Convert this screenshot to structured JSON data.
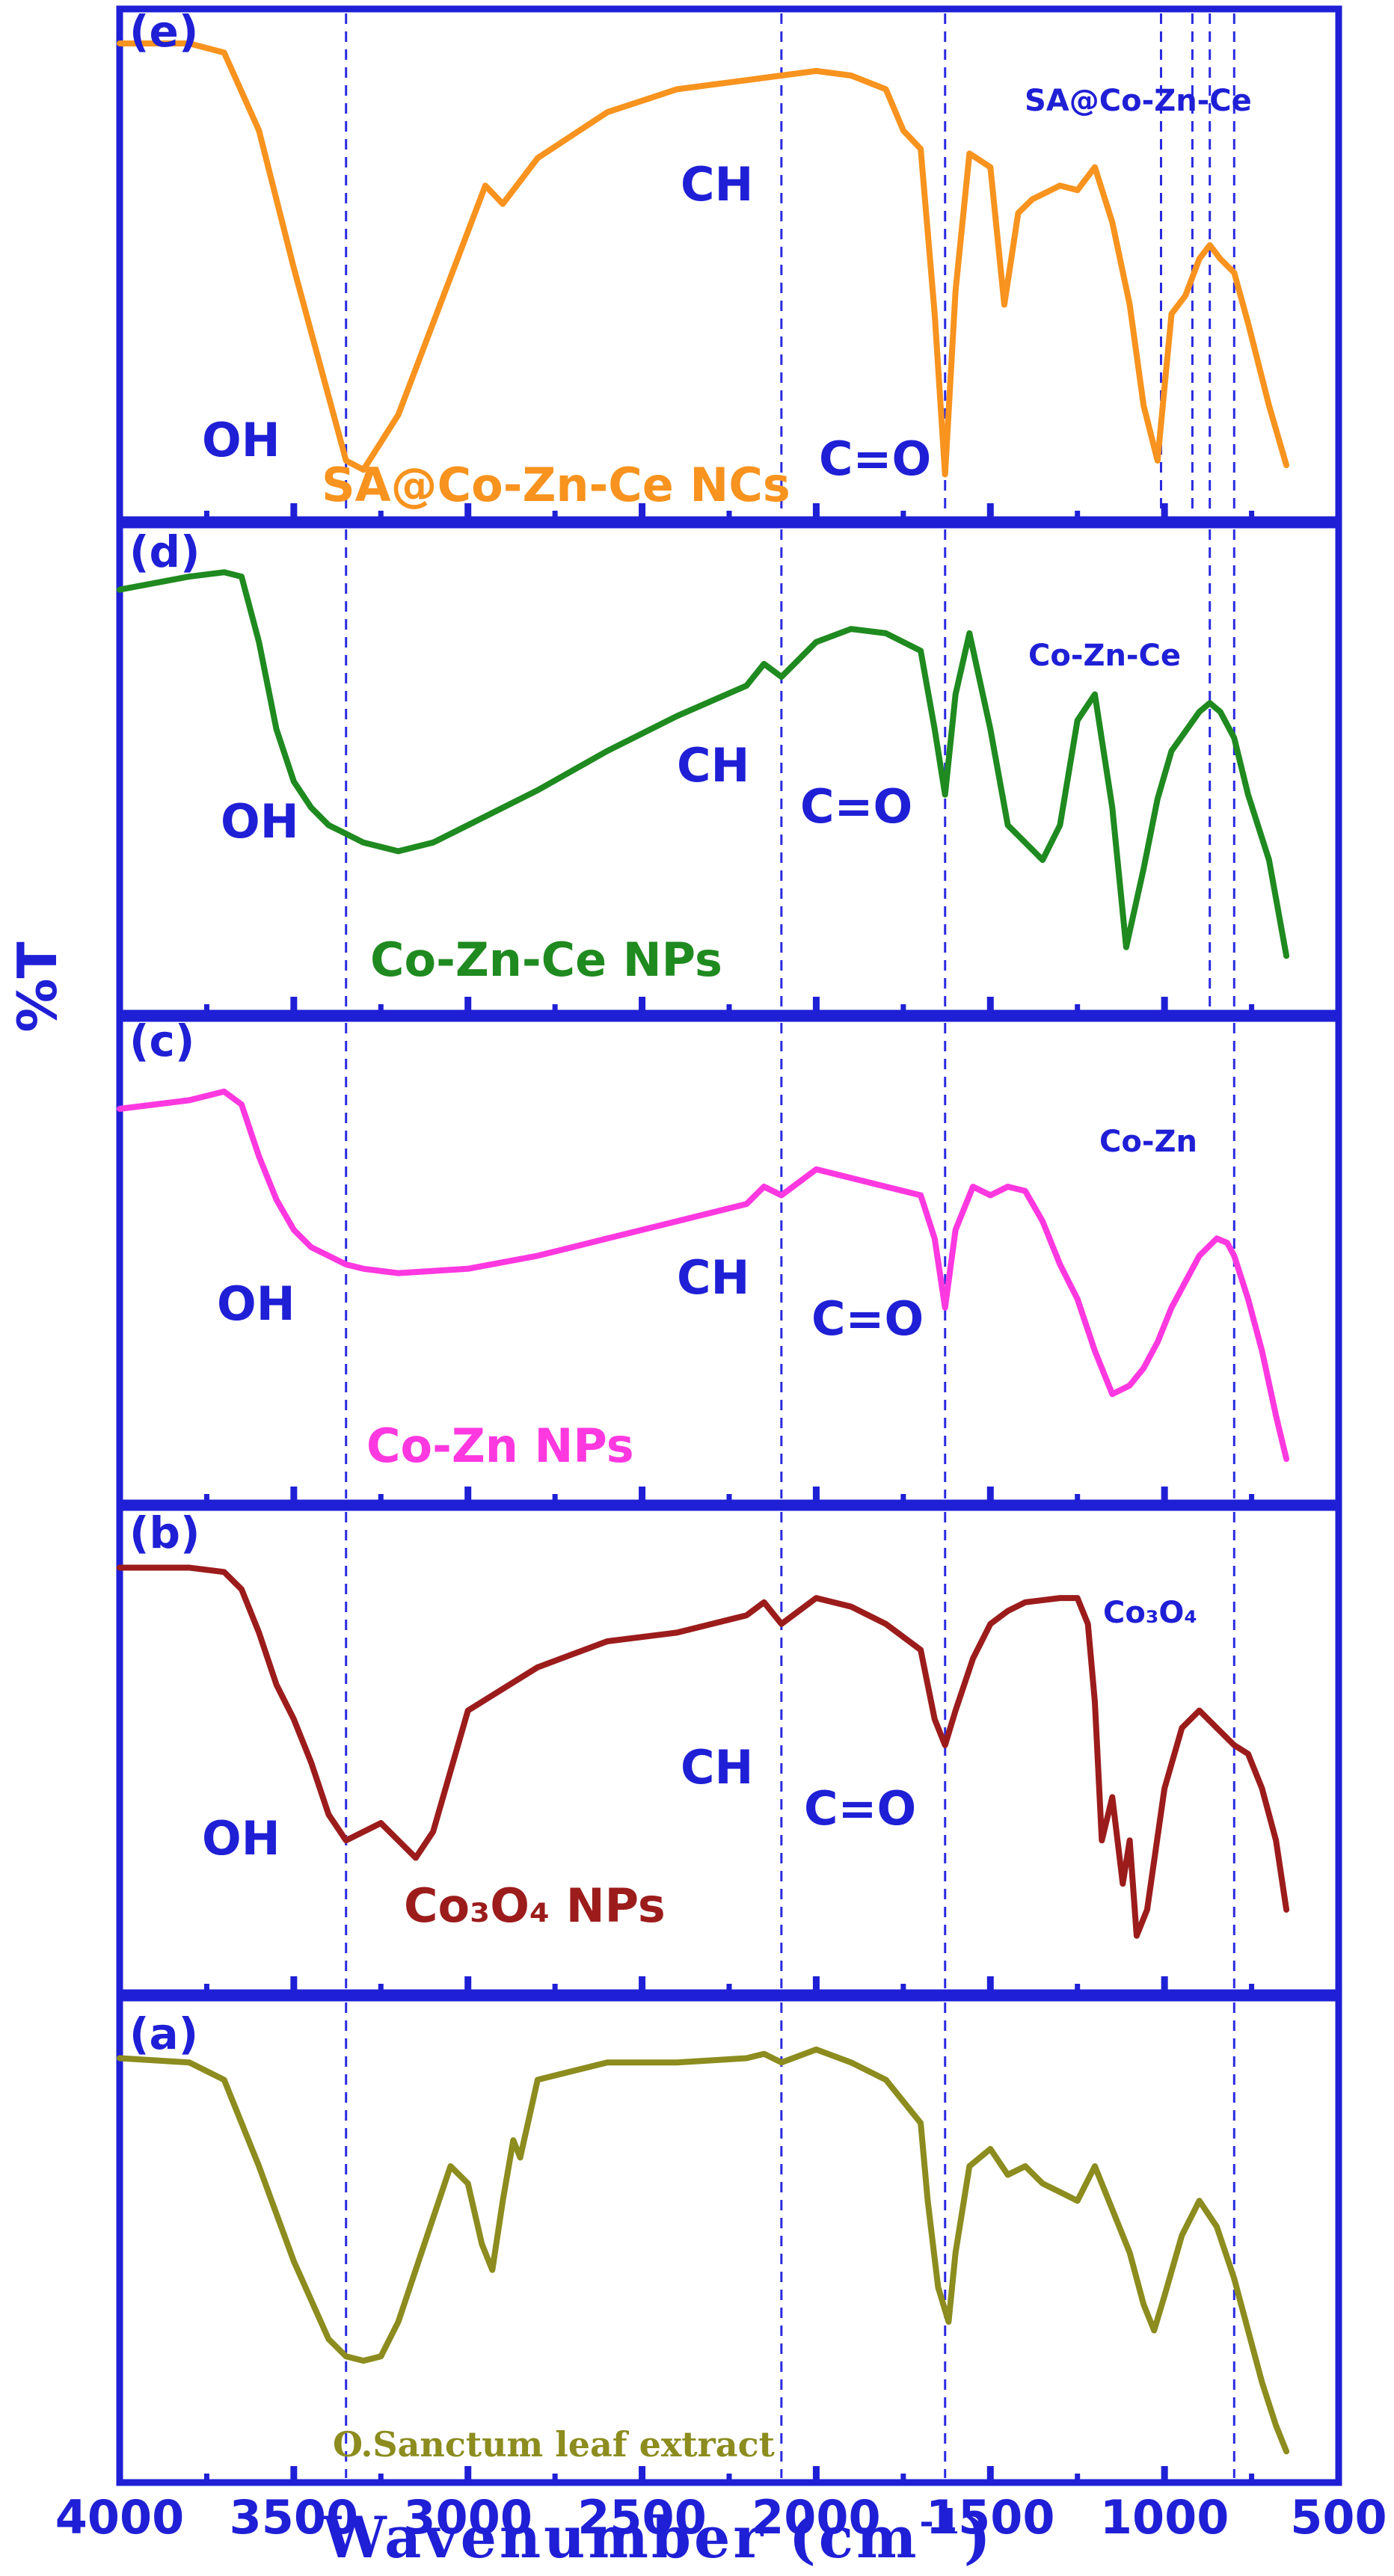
{
  "chart_data": {
    "type": "line",
    "xlabel_main": "Wavenumber (cm",
    "xlabel_sup": "-1",
    "xlabel_tail": ")",
    "ylabel": "%T",
    "xlim": [
      4000,
      500
    ],
    "x_ticks": [
      4000,
      3500,
      3000,
      2500,
      2000,
      1500,
      1000,
      500
    ],
    "reference_lines": [
      3350,
      2100,
      1630,
      1010,
      920,
      870,
      800
    ],
    "colors": {
      "axis": "#1f1fd6",
      "guide": "#2a2ae0"
    },
    "panels": [
      {
        "id": "e",
        "letter": "(e)",
        "color": "#f7931e",
        "sample_label": "SA@Co-Zn-Ce NCs",
        "corner_label": "SA@Co-Zn-Ce",
        "band_labels": [
          "OH",
          "CH",
          "C=O"
        ],
        "guides": [
          3350,
          2100,
          1630,
          1010,
          920,
          870,
          800
        ],
        "series": {
          "name": "SA@Co-Zn-Ce NCs",
          "x": [
            4000,
            3800,
            3700,
            3600,
            3500,
            3400,
            3350,
            3300,
            3200,
            3100,
            3000,
            2950,
            2900,
            2800,
            2600,
            2400,
            2200,
            2100,
            2000,
            1900,
            1800,
            1750,
            1700,
            1660,
            1630,
            1600,
            1560,
            1500,
            1460,
            1420,
            1380,
            1300,
            1250,
            1200,
            1150,
            1100,
            1060,
            1020,
            980,
            940,
            900,
            870,
            840,
            800,
            760,
            700,
            650
          ],
          "y": [
            99,
            99,
            97,
            80,
            50,
            22,
            8,
            6,
            18,
            38,
            58,
            68,
            64,
            74,
            84,
            89,
            91,
            92,
            93,
            92,
            89,
            80,
            76,
            40,
            5,
            45,
            75,
            72,
            42,
            62,
            65,
            68,
            67,
            72,
            60,
            42,
            20,
            8,
            40,
            44,
            52,
            55,
            52,
            49,
            38,
            20,
            7
          ]
        }
      },
      {
        "id": "d",
        "letter": "(d)",
        "color": "#1f8a1f",
        "sample_label": "Co-Zn-Ce NPs",
        "corner_label": "Co-Zn-Ce",
        "band_labels": [
          "OH",
          "CH",
          "C=O"
        ],
        "guides": [
          3350,
          2100,
          1630,
          870,
          800
        ],
        "series": {
          "name": "Co-Zn-Ce NPs",
          "x": [
            4000,
            3800,
            3700,
            3650,
            3600,
            3550,
            3500,
            3450,
            3400,
            3350,
            3300,
            3200,
            3100,
            3000,
            2800,
            2600,
            2400,
            2200,
            2150,
            2100,
            2000,
            1900,
            1800,
            1700,
            1660,
            1630,
            1600,
            1560,
            1500,
            1450,
            1400,
            1350,
            1300,
            1250,
            1200,
            1150,
            1110,
            1060,
            1020,
            980,
            900,
            870,
            840,
            800,
            760,
            700,
            650
          ],
          "y": [
            92,
            95,
            96,
            95,
            80,
            60,
            48,
            42,
            38,
            36,
            34,
            32,
            34,
            38,
            46,
            55,
            63,
            70,
            75,
            72,
            80,
            83,
            82,
            78,
            60,
            45,
            68,
            82,
            60,
            38,
            34,
            30,
            38,
            62,
            68,
            42,
            10,
            28,
            44,
            55,
            64,
            66,
            64,
            58,
            45,
            30,
            8
          ]
        }
      },
      {
        "id": "c",
        "letter": "(c)",
        "color": "#ff38e0",
        "sample_label": "Co-Zn NPs",
        "corner_label": "Co-Zn",
        "band_labels": [
          "OH",
          "CH",
          "C=O"
        ],
        "guides": [
          3350,
          2100,
          1630,
          800
        ],
        "series": {
          "name": "Co-Zn NPs",
          "x": [
            4000,
            3800,
            3700,
            3650,
            3600,
            3550,
            3500,
            3450,
            3400,
            3350,
            3300,
            3200,
            3000,
            2800,
            2600,
            2400,
            2200,
            2150,
            2100,
            2000,
            1900,
            1800,
            1700,
            1660,
            1630,
            1600,
            1550,
            1500,
            1450,
            1400,
            1350,
            1300,
            1250,
            1200,
            1150,
            1100,
            1060,
            1020,
            980,
            900,
            850,
            820,
            800,
            760,
            720,
            680,
            650
          ],
          "y": [
            86,
            88,
            90,
            87,
            75,
            65,
            58,
            54,
            52,
            50,
            49,
            48,
            49,
            52,
            56,
            60,
            64,
            68,
            66,
            72,
            70,
            68,
            66,
            56,
            40,
            58,
            68,
            66,
            68,
            67,
            60,
            50,
            42,
            30,
            20,
            22,
            26,
            32,
            40,
            52,
            56,
            55,
            52,
            42,
            30,
            15,
            5
          ]
        }
      },
      {
        "id": "b",
        "letter": "(b)",
        "color": "#9c1c1c",
        "sample_label": "Co₃O₄ NPs",
        "corner_label": "Co₃O₄",
        "band_labels": [
          "OH",
          "CH",
          "C=O"
        ],
        "guides": [
          3350,
          2100,
          1630,
          800
        ],
        "series": {
          "name": "Co₃O₄ NPs",
          "x": [
            4000,
            3800,
            3700,
            3650,
            3600,
            3550,
            3500,
            3450,
            3400,
            3350,
            3300,
            3250,
            3200,
            3150,
            3100,
            3050,
            3000,
            2800,
            2600,
            2400,
            2200,
            2150,
            2100,
            2000,
            1900,
            1800,
            1700,
            1660,
            1630,
            1600,
            1550,
            1500,
            1450,
            1400,
            1300,
            1250,
            1220,
            1200,
            1180,
            1150,
            1120,
            1100,
            1080,
            1050,
            1000,
            950,
            900,
            850,
            800,
            760,
            720,
            680,
            650
          ],
          "y": [
            93,
            93,
            92,
            88,
            78,
            66,
            58,
            48,
            36,
            30,
            32,
            34,
            30,
            26,
            32,
            46,
            60,
            70,
            76,
            78,
            82,
            85,
            80,
            86,
            84,
            80,
            74,
            58,
            52,
            60,
            72,
            80,
            83,
            85,
            86,
            86,
            80,
            62,
            30,
            40,
            20,
            30,
            8,
            14,
            42,
            56,
            60,
            56,
            52,
            50,
            42,
            30,
            14
          ]
        }
      },
      {
        "id": "a",
        "letter": "(a)",
        "color": "#8c8c1f",
        "sample_label": "O.Sanctum leaf extract",
        "corner_label": "",
        "band_labels": [],
        "guides": [
          3350,
          2100,
          1630,
          800
        ],
        "series": {
          "name": "O.Sanctum leaf extract",
          "x": [
            4000,
            3800,
            3700,
            3600,
            3500,
            3400,
            3350,
            3300,
            3250,
            3200,
            3100,
            3050,
            3000,
            2960,
            2930,
            2900,
            2870,
            2850,
            2800,
            2600,
            2400,
            2200,
            2150,
            2100,
            2000,
            1900,
            1800,
            1700,
            1680,
            1650,
            1620,
            1600,
            1560,
            1500,
            1450,
            1400,
            1350,
            1300,
            1250,
            1200,
            1150,
            1100,
            1060,
            1030,
            1000,
            950,
            900,
            850,
            800,
            760,
            720,
            680,
            650
          ],
          "y": [
            93,
            92,
            88,
            68,
            46,
            28,
            24,
            23,
            24,
            32,
            56,
            68,
            64,
            50,
            44,
            60,
            74,
            70,
            88,
            92,
            92,
            93,
            94,
            92,
            95,
            92,
            88,
            78,
            60,
            40,
            32,
            48,
            68,
            72,
            66,
            68,
            64,
            62,
            60,
            68,
            58,
            48,
            36,
            30,
            38,
            52,
            60,
            54,
            42,
            30,
            18,
            8,
            2
          ]
        }
      }
    ]
  }
}
